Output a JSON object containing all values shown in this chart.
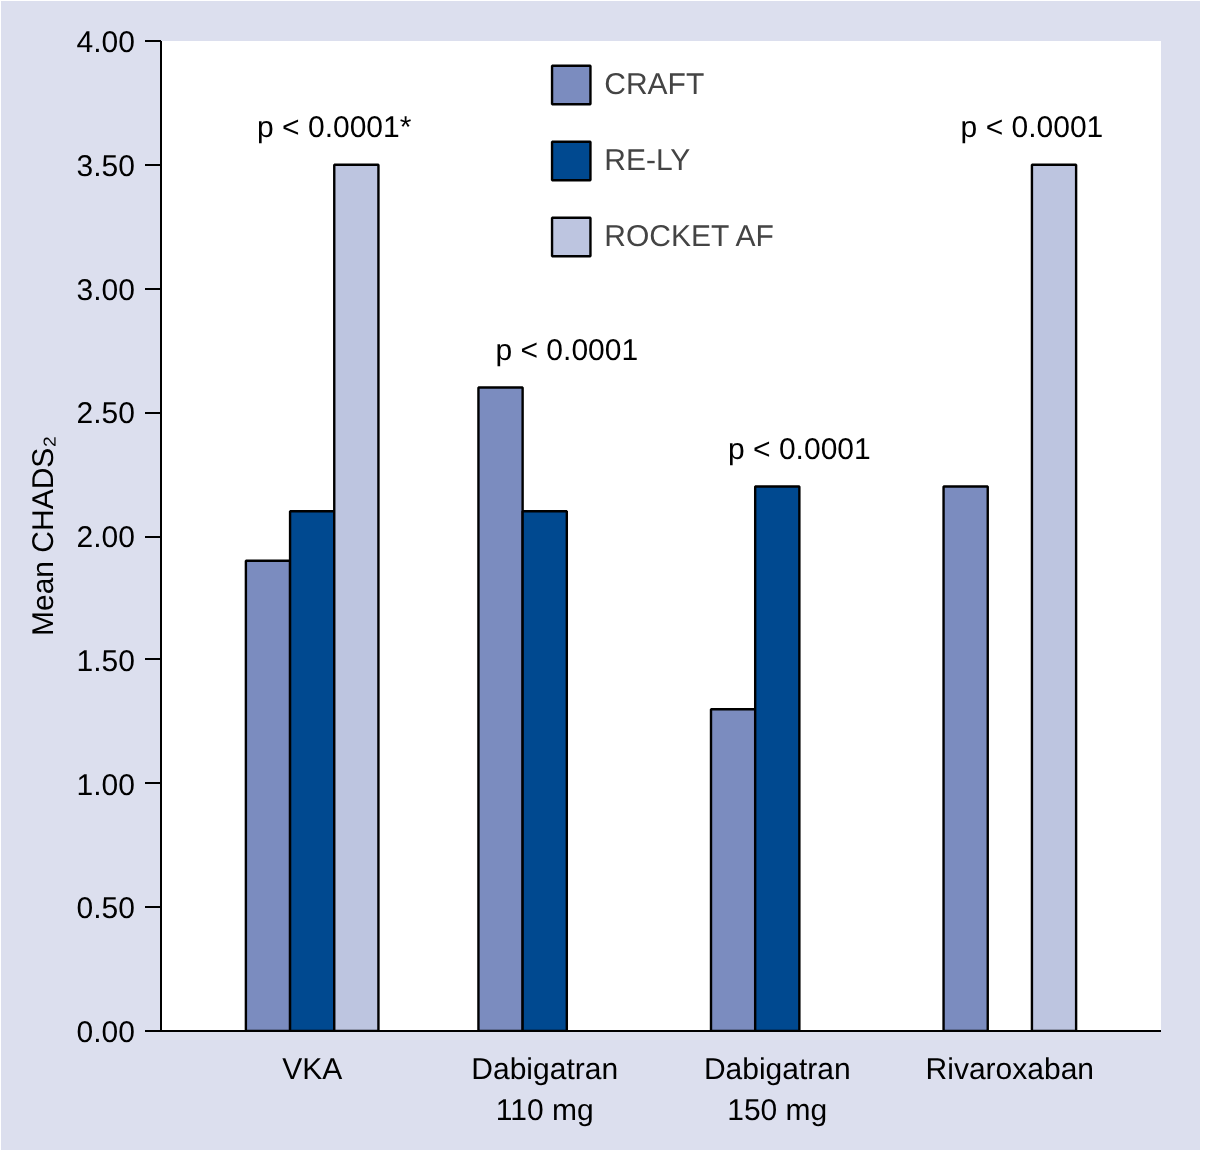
{
  "chart_data": {
    "type": "bar",
    "ylabel": "Mean CHADS₂",
    "categories": [
      "VKA",
      "Dabigatran\n110 mg",
      "Dabigatran\n150 mg",
      "Rivaroxaban"
    ],
    "series": [
      {
        "name": "CRAFT",
        "color": "#7b8cbf",
        "values": [
          1.9,
          2.6,
          1.3,
          2.2
        ]
      },
      {
        "name": "RE-LY",
        "color": "#004990",
        "values": [
          2.1,
          2.1,
          2.2,
          null
        ]
      },
      {
        "name": "ROCKET AF",
        "color": "#bdc5e0",
        "values": [
          3.5,
          null,
          null,
          3.5
        ]
      }
    ],
    "ylim": [
      0,
      4
    ],
    "yticks": [
      {
        "value": 0,
        "label": "0.00"
      },
      {
        "value": 0.5,
        "label": "0.50"
      },
      {
        "value": 1,
        "label": "1.00"
      },
      {
        "value": 1.5,
        "label": "1.50"
      },
      {
        "value": 2,
        "label": "2.00"
      },
      {
        "value": 2.5,
        "label": "2.50"
      },
      {
        "value": 3,
        "label": "3.00"
      },
      {
        "value": 3.5,
        "label": "3.50"
      },
      {
        "value": 4,
        "label": "4.00"
      }
    ],
    "annotations": [
      "p < 0.0001*",
      "p < 0.0001",
      "p < 0.0001",
      "p < 0.0001"
    ],
    "grid": false,
    "legend": "top"
  }
}
